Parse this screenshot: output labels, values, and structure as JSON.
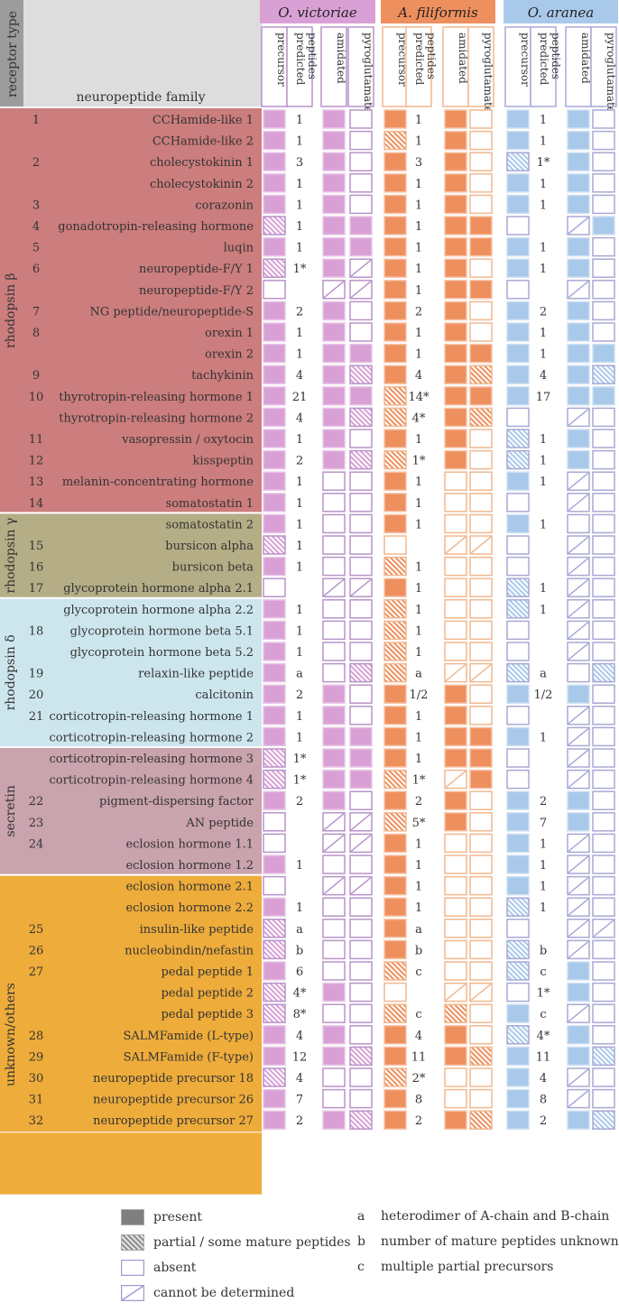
{
  "header": {
    "receptor_type": "receptor type",
    "neuropeptide_family": "neuropeptide family",
    "species": [
      {
        "name": "O. victoriae",
        "color": "#d9a0d6",
        "light": "#e8c7e6",
        "border": "#b893c9"
      },
      {
        "name": "A. filiformis",
        "color": "#ee8f5e",
        "light": "#f7c3a7",
        "border": "#f0b88f"
      },
      {
        "name": "O. aranea",
        "color": "#a9c9ea",
        "light": "#cfe0f2",
        "border": "#a8a8d6"
      }
    ],
    "columns": [
      "precursor",
      "predicted peptides",
      "amidated",
      "pyroglutamate"
    ]
  },
  "groups": [
    {
      "name": "rhodopsin β",
      "color": "#cc7d7d",
      "start": 0,
      "end": 18
    },
    {
      "name": "rhodopsin γ",
      "color": "#b4ad86",
      "start": 19,
      "end": 22
    },
    {
      "name": "rhodopsin δ",
      "color": "#cde6ee",
      "start": 23,
      "end": 29
    },
    {
      "name": "secretin",
      "color": "#c9a3ad",
      "start": 30,
      "end": 35
    },
    {
      "name": "unknown/others",
      "color": "#eeac3b",
      "start": 36,
      "end": 50
    }
  ],
  "rows": [
    {
      "rt": "1",
      "name": "CCHamide-like 1",
      "d": [
        [
          "P",
          "1",
          "P",
          "A"
        ],
        [
          "P",
          "1",
          "P",
          "A"
        ],
        [
          "P",
          "1",
          "P",
          "A"
        ]
      ]
    },
    {
      "rt": "",
      "name": "CCHamide-like 2",
      "d": [
        [
          "P",
          "1",
          "P",
          "A"
        ],
        [
          "H",
          "1",
          "P",
          "A"
        ],
        [
          "P",
          "1",
          "P",
          "A"
        ]
      ]
    },
    {
      "rt": "2",
      "name": "cholecystokinin 1",
      "d": [
        [
          "P",
          "3",
          "P",
          "A"
        ],
        [
          "P",
          "3",
          "P",
          "A"
        ],
        [
          "H",
          "1*",
          "P",
          "A"
        ]
      ]
    },
    {
      "rt": "",
      "name": "cholecystokinin 2",
      "d": [
        [
          "P",
          "1",
          "P",
          "A"
        ],
        [
          "P",
          "1",
          "P",
          "A"
        ],
        [
          "P",
          "1",
          "P",
          "A"
        ]
      ]
    },
    {
      "rt": "3",
      "name": "corazonin",
      "d": [
        [
          "P",
          "1",
          "P",
          "A"
        ],
        [
          "P",
          "1",
          "P",
          "A"
        ],
        [
          "P",
          "1",
          "P",
          "A"
        ]
      ]
    },
    {
      "rt": "4",
      "name": "gonadotropin-releasing hormone",
      "d": [
        [
          "H",
          "1",
          "P",
          "P"
        ],
        [
          "P",
          "1",
          "P",
          "P"
        ],
        [
          "A",
          "",
          "D",
          "P"
        ]
      ]
    },
    {
      "rt": "5",
      "name": "luqin",
      "d": [
        [
          "P",
          "1",
          "P",
          "P"
        ],
        [
          "P",
          "1",
          "P",
          "P"
        ],
        [
          "P",
          "1",
          "P",
          "A"
        ]
      ]
    },
    {
      "rt": "6",
      "name": "neuropeptide-F/Y 1",
      "d": [
        [
          "H",
          "1*",
          "P",
          "D"
        ],
        [
          "P",
          "1",
          "P",
          "A"
        ],
        [
          "P",
          "1",
          "P",
          "A"
        ]
      ]
    },
    {
      "rt": "",
      "name": "neuropeptide-F/Y 2",
      "d": [
        [
          "A",
          "",
          "D",
          "D"
        ],
        [
          "P",
          "1",
          "P",
          "P"
        ],
        [
          "A",
          "",
          "D",
          "A"
        ]
      ]
    },
    {
      "rt": "7",
      "name": "NG peptide/neuropeptide-S",
      "d": [
        [
          "P",
          "2",
          "P",
          "A"
        ],
        [
          "P",
          "2",
          "P",
          "A"
        ],
        [
          "P",
          "2",
          "P",
          "A"
        ]
      ]
    },
    {
      "rt": "8",
      "name": "orexin 1",
      "d": [
        [
          "P",
          "1",
          "P",
          "A"
        ],
        [
          "P",
          "1",
          "P",
          "A"
        ],
        [
          "P",
          "1",
          "P",
          "A"
        ]
      ]
    },
    {
      "rt": "",
      "name": "orexin 2",
      "d": [
        [
          "P",
          "1",
          "P",
          "P"
        ],
        [
          "P",
          "1",
          "P",
          "P"
        ],
        [
          "P",
          "1",
          "P",
          "P"
        ]
      ]
    },
    {
      "rt": "9",
      "name": "tachykinin",
      "d": [
        [
          "P",
          "4",
          "P",
          "H"
        ],
        [
          "P",
          "4",
          "P",
          "H"
        ],
        [
          "P",
          "4",
          "P",
          "H"
        ]
      ]
    },
    {
      "rt": "10",
      "name": "thyrotropin-releasing hormone 1",
      "d": [
        [
          "P",
          "21",
          "P",
          "P"
        ],
        [
          "H",
          "14*",
          "P",
          "P"
        ],
        [
          "P",
          "17",
          "P",
          "P"
        ]
      ]
    },
    {
      "rt": "",
      "name": "thyrotropin-releasing hormone 2",
      "d": [
        [
          "P",
          "4",
          "P",
          "H"
        ],
        [
          "H",
          "4*",
          "P",
          "H"
        ],
        [
          "A",
          "",
          "D",
          "A"
        ]
      ]
    },
    {
      "rt": "11",
      "name": "vasopressin / oxytocin",
      "d": [
        [
          "P",
          "1",
          "P",
          "A"
        ],
        [
          "P",
          "1",
          "P",
          "A"
        ],
        [
          "H",
          "1",
          "P",
          "A"
        ]
      ]
    },
    {
      "rt": "12",
      "name": "kisspeptin",
      "d": [
        [
          "P",
          "2",
          "P",
          "H"
        ],
        [
          "H",
          "1*",
          "P",
          "A"
        ],
        [
          "H",
          "1",
          "P",
          "A"
        ]
      ]
    },
    {
      "rt": "13",
      "name": "melanin-concentrating hormone",
      "d": [
        [
          "P",
          "1",
          "A",
          "A"
        ],
        [
          "P",
          "1",
          "A",
          "A"
        ],
        [
          "P",
          "1",
          "D",
          "A"
        ]
      ]
    },
    {
      "rt": "14",
      "name": "somatostatin 1",
      "d": [
        [
          "P",
          "1",
          "A",
          "A"
        ],
        [
          "P",
          "1",
          "A",
          "A"
        ],
        [
          "A",
          "",
          "D",
          "A"
        ]
      ]
    },
    {
      "rt": "",
      "name": "somatostatin 2",
      "d": [
        [
          "P",
          "1",
          "A",
          "A"
        ],
        [
          "P",
          "1",
          "A",
          "A"
        ],
        [
          "P",
          "1",
          "A",
          "A"
        ]
      ]
    },
    {
      "rt": "15",
      "name": "bursicon alpha",
      "d": [
        [
          "H",
          "1",
          "A",
          "A"
        ],
        [
          "A",
          "",
          "D",
          "D"
        ],
        [
          "A",
          "",
          "D",
          "A"
        ]
      ]
    },
    {
      "rt": "16",
      "name": "bursicon beta",
      "d": [
        [
          "P",
          "1",
          "A",
          "A"
        ],
        [
          "H",
          "1",
          "A",
          "A"
        ],
        [
          "A",
          "",
          "D",
          "A"
        ]
      ]
    },
    {
      "rt": "17",
      "name": "glycoprotein hormone alpha 2.1",
      "d": [
        [
          "A",
          "",
          "D",
          "D"
        ],
        [
          "P",
          "1",
          "A",
          "A"
        ],
        [
          "H",
          "1",
          "D",
          "A"
        ]
      ]
    },
    {
      "rt": "",
      "name": "glycoprotein hormone alpha 2.2",
      "d": [
        [
          "P",
          "1",
          "A",
          "A"
        ],
        [
          "H",
          "1",
          "A",
          "A"
        ],
        [
          "H",
          "1",
          "D",
          "A"
        ]
      ]
    },
    {
      "rt": "18",
      "name": "glycoprotein hormone beta 5.1",
      "d": [
        [
          "P",
          "1",
          "A",
          "A"
        ],
        [
          "H",
          "1",
          "A",
          "A"
        ],
        [
          "A",
          "",
          "D",
          "A"
        ]
      ]
    },
    {
      "rt": "",
      "name": "glycoprotein hormone beta 5.2",
      "d": [
        [
          "P",
          "1",
          "A",
          "A"
        ],
        [
          "H",
          "1",
          "A",
          "A"
        ],
        [
          "A",
          "",
          "D",
          "A"
        ]
      ]
    },
    {
      "rt": "19",
      "name": "relaxin-like peptide",
      "d": [
        [
          "P",
          "a",
          "A",
          "H"
        ],
        [
          "H",
          "a",
          "D",
          "D"
        ],
        [
          "H",
          "a",
          "A",
          "H"
        ]
      ]
    },
    {
      "rt": "20",
      "name": "calcitonin",
      "d": [
        [
          "P",
          "2",
          "P",
          "A"
        ],
        [
          "P",
          "1/2",
          "P",
          "A"
        ],
        [
          "P",
          "1/2",
          "P",
          "A"
        ]
      ]
    },
    {
      "rt": "21",
      "name": "corticotropin-releasing hormone 1",
      "d": [
        [
          "P",
          "1",
          "P",
          "A"
        ],
        [
          "P",
          "1",
          "P",
          "A"
        ],
        [
          "A",
          "",
          "D",
          "A"
        ]
      ]
    },
    {
      "rt": "",
      "name": "corticotropin-releasing hormone 2",
      "d": [
        [
          "P",
          "1",
          "P",
          "P"
        ],
        [
          "P",
          "1",
          "P",
          "P"
        ],
        [
          "P",
          "1",
          "D",
          "A"
        ]
      ]
    },
    {
      "rt": "",
      "name": "corticotropin-releasing hormone 3",
      "d": [
        [
          "H",
          "1*",
          "P",
          "P"
        ],
        [
          "P",
          "1",
          "P",
          "P"
        ],
        [
          "A",
          "",
          "D",
          "A"
        ]
      ]
    },
    {
      "rt": "",
      "name": "corticotropin-releasing hormone 4",
      "d": [
        [
          "H",
          "1*",
          "P",
          "P"
        ],
        [
          "H",
          "1*",
          "D",
          "P"
        ],
        [
          "A",
          "",
          "D",
          "A"
        ]
      ]
    },
    {
      "rt": "22",
      "name": "pigment-dispersing factor",
      "d": [
        [
          "P",
          "2",
          "P",
          "A"
        ],
        [
          "P",
          "2",
          "P",
          "A"
        ],
        [
          "P",
          "2",
          "P",
          "A"
        ]
      ]
    },
    {
      "rt": "23",
      "name": "AN peptide",
      "d": [
        [
          "A",
          "",
          "D",
          "D"
        ],
        [
          "H",
          "5*",
          "P",
          "A"
        ],
        [
          "P",
          "7",
          "P",
          "A"
        ]
      ]
    },
    {
      "rt": "24",
      "name": "eclosion hormone 1.1",
      "d": [
        [
          "A",
          "",
          "D",
          "D"
        ],
        [
          "P",
          "1",
          "A",
          "A"
        ],
        [
          "P",
          "1",
          "D",
          "A"
        ]
      ]
    },
    {
      "rt": "",
      "name": "eclosion hormone 1.2",
      "d": [
        [
          "P",
          "1",
          "A",
          "A"
        ],
        [
          "P",
          "1",
          "A",
          "A"
        ],
        [
          "P",
          "1",
          "D",
          "A"
        ]
      ]
    },
    {
      "rt": "",
      "name": "eclosion hormone 2.1",
      "d": [
        [
          "A",
          "",
          "D",
          "D"
        ],
        [
          "P",
          "1",
          "A",
          "A"
        ],
        [
          "P",
          "1",
          "D",
          "A"
        ]
      ]
    },
    {
      "rt": "",
      "name": "eclosion hormone 2.2",
      "d": [
        [
          "P",
          "1",
          "A",
          "A"
        ],
        [
          "P",
          "1",
          "A",
          "A"
        ],
        [
          "H",
          "1",
          "D",
          "A"
        ]
      ]
    },
    {
      "rt": "25",
      "name": "insulin-like peptide",
      "d": [
        [
          "H",
          "a",
          "A",
          "A"
        ],
        [
          "P",
          "a",
          "A",
          "A"
        ],
        [
          "A",
          "",
          "D",
          "D"
        ]
      ]
    },
    {
      "rt": "26",
      "name": "nucleobindin/nefastin",
      "d": [
        [
          "H",
          "b",
          "A",
          "A"
        ],
        [
          "P",
          "b",
          "A",
          "A"
        ],
        [
          "H",
          "b",
          "D",
          "A"
        ]
      ]
    },
    {
      "rt": "27",
      "name": "pedal peptide 1",
      "d": [
        [
          "P",
          "6",
          "A",
          "A"
        ],
        [
          "H",
          "c",
          "A",
          "A"
        ],
        [
          "H",
          "c",
          "P",
          "A"
        ]
      ]
    },
    {
      "rt": "",
      "name": "pedal peptide 2",
      "d": [
        [
          "H",
          "4*",
          "P",
          "A"
        ],
        [
          "A",
          "",
          "D",
          "D"
        ],
        [
          "A",
          "1*",
          "P",
          "A"
        ]
      ]
    },
    {
      "rt": "",
      "name": "pedal peptide 3",
      "d": [
        [
          "H",
          "8*",
          "A",
          "A"
        ],
        [
          "H",
          "c",
          "H",
          "A"
        ],
        [
          "P",
          "c",
          "D",
          "A"
        ]
      ]
    },
    {
      "rt": "28",
      "name": "SALMFamide (L-type)",
      "d": [
        [
          "P",
          "4",
          "P",
          "A"
        ],
        [
          "P",
          "4",
          "P",
          "A"
        ],
        [
          "H",
          "4*",
          "P",
          "A"
        ]
      ]
    },
    {
      "rt": "29",
      "name": "SALMFamide (F-type)",
      "d": [
        [
          "P",
          "12",
          "P",
          "H"
        ],
        [
          "P",
          "11",
          "P",
          "H"
        ],
        [
          "P",
          "11",
          "P",
          "H"
        ]
      ]
    },
    {
      "rt": "30",
      "name": "neuropeptide precursor 18",
      "d": [
        [
          "H",
          "4",
          "A",
          "A"
        ],
        [
          "H",
          "2*",
          "A",
          "A"
        ],
        [
          "P",
          "4",
          "D",
          "A"
        ]
      ]
    },
    {
      "rt": "31",
      "name": "neuropeptide precursor 26",
      "d": [
        [
          "P",
          "7",
          "A",
          "A"
        ],
        [
          "P",
          "8",
          "A",
          "A"
        ],
        [
          "P",
          "8",
          "D",
          "A"
        ]
      ]
    },
    {
      "rt": "32",
      "name": "neuropeptide precursor 27",
      "d": [
        [
          "P",
          "2",
          "P",
          "H"
        ],
        [
          "P",
          "2",
          "P",
          "H"
        ],
        [
          "P",
          "2",
          "P",
          "H"
        ]
      ]
    }
  ],
  "legend": {
    "items": [
      {
        "code": "P",
        "label": "present"
      },
      {
        "code": "H",
        "label": "partial / some mature peptides"
      },
      {
        "code": "A",
        "label": "absent"
      },
      {
        "code": "D",
        "label": "cannot be determined"
      }
    ],
    "notes": [
      {
        "key": "a",
        "text": "heterodimer of A-chain and B-chain"
      },
      {
        "key": "b",
        "text": "number of mature peptides unknown"
      },
      {
        "key": "c",
        "text": "multiple partial precursors"
      }
    ]
  }
}
